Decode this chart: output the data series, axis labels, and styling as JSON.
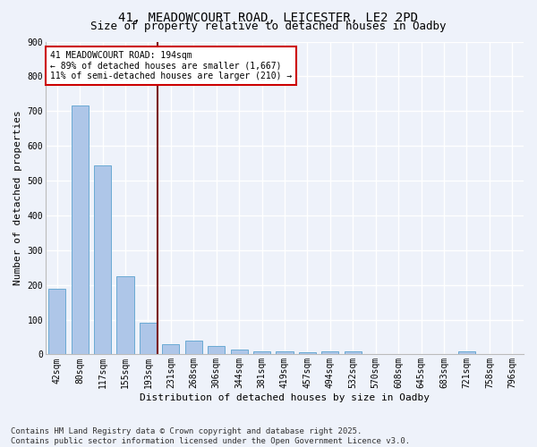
{
  "title1": "41, MEADOWCOURT ROAD, LEICESTER, LE2 2PD",
  "title2": "Size of property relative to detached houses in Oadby",
  "xlabel": "Distribution of detached houses by size in Oadby",
  "ylabel": "Number of detached properties",
  "categories": [
    "42sqm",
    "80sqm",
    "117sqm",
    "155sqm",
    "193sqm",
    "231sqm",
    "268sqm",
    "306sqm",
    "344sqm",
    "381sqm",
    "419sqm",
    "457sqm",
    "494sqm",
    "532sqm",
    "570sqm",
    "608sqm",
    "645sqm",
    "683sqm",
    "721sqm",
    "758sqm",
    "796sqm"
  ],
  "values": [
    190,
    715,
    545,
    225,
    90,
    30,
    40,
    25,
    15,
    10,
    10,
    5,
    8,
    8,
    0,
    0,
    0,
    0,
    10,
    0,
    0
  ],
  "bar_color": "#aec6e8",
  "bar_edge_color": "#6aaad4",
  "vline_color": "#7a1010",
  "vline_x": 4.5,
  "annotation_text": "41 MEADOWCOURT ROAD: 194sqm\n← 89% of detached houses are smaller (1,667)\n11% of semi-detached houses are larger (210) →",
  "annotation_box_color": "#ffffff",
  "annotation_edge_color": "#cc0000",
  "ylim": [
    0,
    900
  ],
  "yticks": [
    0,
    100,
    200,
    300,
    400,
    500,
    600,
    700,
    800,
    900
  ],
  "background_color": "#eef2fa",
  "grid_color": "#ffffff",
  "footer1": "Contains HM Land Registry data © Crown copyright and database right 2025.",
  "footer2": "Contains public sector information licensed under the Open Government Licence v3.0.",
  "title_fontsize": 10,
  "subtitle_fontsize": 9,
  "axis_fontsize": 8,
  "tick_fontsize": 7,
  "footer_fontsize": 6.5,
  "bar_width": 0.75
}
